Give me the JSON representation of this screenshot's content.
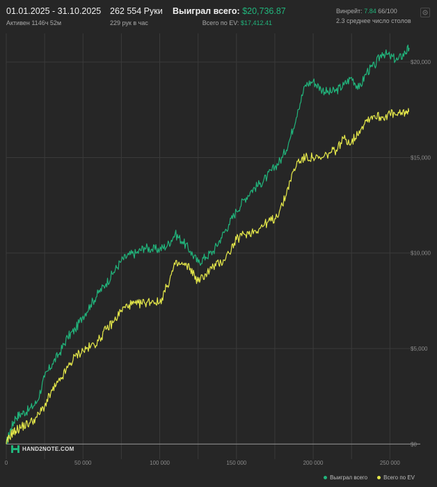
{
  "header": {
    "date_range": "01.01.2025 - 31.10.2025",
    "active_time": "Активен 1146ч 52м",
    "hands": "262 554 Руки",
    "hands_per_hour": "229 рук в час",
    "won_label": "Выиграл всего:",
    "won_value": "$20,736.87",
    "ev_label": "Всего по EV:",
    "ev_value": "$17,412.41",
    "winrate_label": "Винрейт:",
    "winrate_value": "7.84",
    "winrate_rest": "66/100",
    "avg_tables": "2.3 среднее число столов"
  },
  "logo": {
    "text": "HAND2NOTE.COM"
  },
  "legend": {
    "won": "Выиграл всего",
    "ev": "Всего по EV"
  },
  "colors": {
    "won": "#21b57c",
    "ev": "#e6e94a",
    "grid": "#3a3a3a",
    "zero_line": "#9a9a9a",
    "tick": "#8a8a8a"
  },
  "chart_data": {
    "type": "line",
    "xlim": [
      0,
      262554
    ],
    "ylim": [
      -500,
      21500
    ],
    "x_ticks": [
      0,
      50000,
      100000,
      150000,
      200000,
      250000
    ],
    "x_tick_labels": [
      "0",
      "50 000",
      "100 000",
      "150 000",
      "200 000",
      "250 000"
    ],
    "y_ticks": [
      0,
      5000,
      10000,
      15000,
      20000
    ],
    "y_tick_labels": [
      "$0",
      "$5,000",
      "$10,000",
      "$15,000",
      "$20,000"
    ],
    "grid": true,
    "legend_position": "bottom-right",
    "series": [
      {
        "name": "Выиграл всего",
        "x": [
          0,
          3000,
          6000,
          10000,
          15000,
          20000,
          25000,
          30000,
          35000,
          40000,
          45000,
          50000,
          55000,
          60000,
          65000,
          70000,
          75000,
          80000,
          85000,
          90000,
          95000,
          100000,
          105000,
          110000,
          115000,
          120000,
          125000,
          130000,
          135000,
          140000,
          145000,
          150000,
          155000,
          160000,
          165000,
          170000,
          175000,
          180000,
          185000,
          190000,
          195000,
          200000,
          205000,
          210000,
          215000,
          220000,
          225000,
          230000,
          235000,
          240000,
          245000,
          250000,
          255000,
          260000,
          262554
        ],
        "values": [
          0,
          800,
          1400,
          1600,
          1800,
          2200,
          3500,
          4200,
          4800,
          5600,
          6000,
          6700,
          7300,
          7900,
          8400,
          9000,
          9600,
          9900,
          10000,
          10300,
          10200,
          10200,
          10400,
          11000,
          10600,
          10100,
          9500,
          9800,
          10100,
          10800,
          11500,
          12200,
          12800,
          13300,
          13600,
          14000,
          14500,
          15000,
          16000,
          17500,
          18800,
          19000,
          18600,
          18400,
          18500,
          18800,
          19200,
          18600,
          19500,
          19800,
          20500,
          20300,
          20100,
          20500,
          20737
        ]
      },
      {
        "name": "Всего по EV",
        "x": [
          0,
          3000,
          6000,
          10000,
          15000,
          20000,
          25000,
          30000,
          35000,
          40000,
          45000,
          50000,
          55000,
          60000,
          65000,
          70000,
          75000,
          80000,
          85000,
          90000,
          95000,
          100000,
          105000,
          110000,
          115000,
          120000,
          125000,
          130000,
          135000,
          140000,
          145000,
          150000,
          155000,
          160000,
          165000,
          170000,
          175000,
          180000,
          185000,
          190000,
          195000,
          200000,
          205000,
          210000,
          215000,
          220000,
          225000,
          230000,
          235000,
          240000,
          245000,
          250000,
          255000,
          260000,
          262554
        ],
        "values": [
          0,
          500,
          700,
          900,
          1100,
          1400,
          2000,
          2800,
          3300,
          4000,
          4600,
          4900,
          5100,
          5400,
          6000,
          6400,
          7000,
          7300,
          7300,
          7400,
          7500,
          7400,
          8300,
          9400,
          9400,
          9200,
          8500,
          8900,
          9300,
          9500,
          10000,
          10700,
          11000,
          11100,
          11300,
          11600,
          11800,
          12500,
          13800,
          14800,
          15000,
          15000,
          14900,
          15200,
          15400,
          16000,
          15800,
          16400,
          17000,
          17200,
          17100,
          17300,
          17200,
          17400,
          17412
        ]
      }
    ]
  }
}
